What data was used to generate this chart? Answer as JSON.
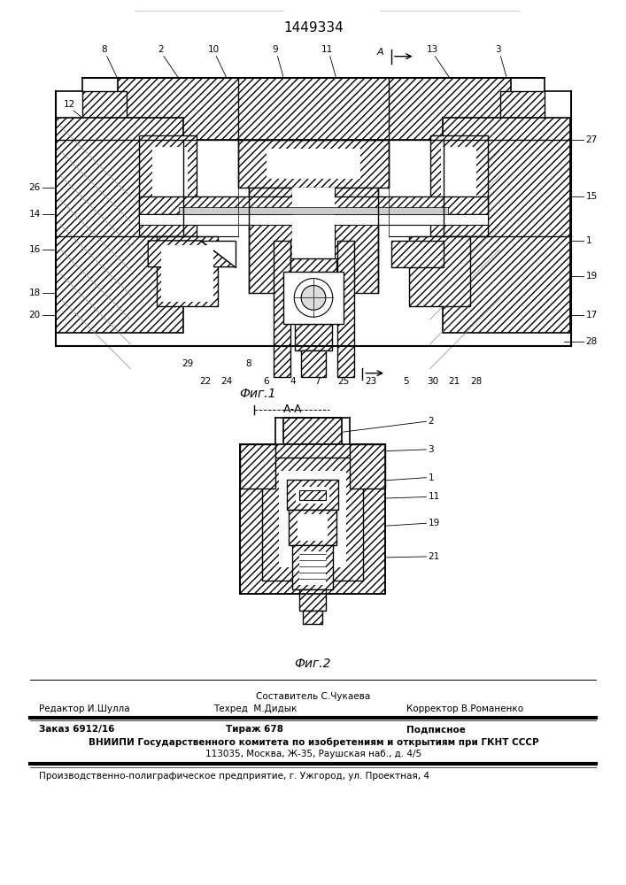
{
  "patent_number": "1449334",
  "background_color": "#ffffff",
  "fig1_caption": "Фиг.1",
  "fig2_caption": "Фиг.2",
  "section_label": "А-А",
  "footer_line1_left": "Редактор И.Шулла",
  "footer_line1_center_top": "Составитель С.Чукаева",
  "footer_line1_center_bot": "Техред  М.Дидык",
  "footer_line1_right": "Корректор В.Романенко",
  "footer_line2_col1": "Заказ 6912/16",
  "footer_line2_col2": "Тираж 678",
  "footer_line2_col3": "Подписное",
  "footer_line3": "ВНИИПИ Государственного комитета по изобретениям и открытиям при ГКНТ СССР",
  "footer_line4": "113035, Москва, Ж-35, Раушская наб., д. 4/5",
  "footer_line5": "Производственно-полиграфическое предприятие, г. Ужгород, ул. Проектная, 4",
  "line_color": "#000000",
  "text_color": "#000000"
}
